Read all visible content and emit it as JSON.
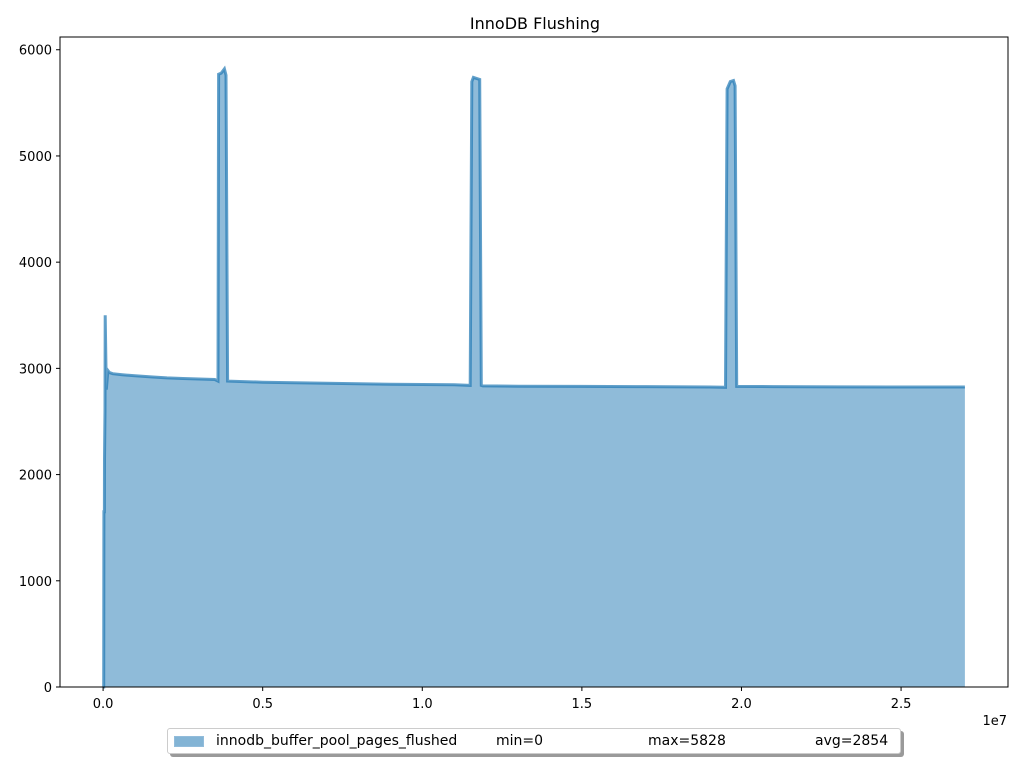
{
  "chart_data": {
    "type": "area",
    "title": "InnoDB Flushing",
    "xlabel": "",
    "ylabel": "",
    "x_offset_label": "1e7",
    "xlim": [
      -1350000,
      28350000
    ],
    "ylim": [
      0,
      6120
    ],
    "x_ticks": [
      0,
      5000000,
      10000000,
      15000000,
      20000000,
      25000000
    ],
    "x_tick_labels": [
      "0.0",
      "0.5",
      "1.0",
      "1.5",
      "2.0",
      "2.5"
    ],
    "y_ticks": [
      0,
      1000,
      2000,
      3000,
      4000,
      5000,
      6000
    ],
    "y_tick_labels": [
      "0",
      "1000",
      "2000",
      "3000",
      "4000",
      "5000",
      "6000"
    ],
    "grid": false,
    "legend_position": "bottom-center",
    "series": [
      {
        "name": "innodb_buffer_pool_pages_flushed",
        "color": "#1f77b4",
        "x": [
          0,
          20000,
          25000,
          40000,
          45000,
          60000,
          65000,
          100000,
          150000,
          200000,
          300000,
          600000,
          1000000,
          1500000,
          2000000,
          2500000,
          3000000,
          3500000,
          3600000,
          3620000,
          3700000,
          3800000,
          3850000,
          3900000,
          5000000,
          6000000,
          7000000,
          8000000,
          9000000,
          10000000,
          11000000,
          11500000,
          11550000,
          11600000,
          11700000,
          11800000,
          11850000,
          11900000,
          13000000,
          15000000,
          17000000,
          19000000,
          19500000,
          19550000,
          19650000,
          19750000,
          19800000,
          19850000,
          21000000,
          23000000,
          25000000,
          27000000
        ],
        "y": [
          0,
          0,
          1650,
          1650,
          2150,
          2600,
          3500,
          2800,
          2980,
          2960,
          2950,
          2940,
          2930,
          2920,
          2910,
          2905,
          2900,
          2895,
          2880,
          5770,
          5780,
          5820,
          5760,
          2880,
          2870,
          2865,
          2860,
          2855,
          2850,
          2848,
          2845,
          2840,
          5700,
          5740,
          5730,
          5720,
          2840,
          2835,
          2832,
          2830,
          2828,
          2825,
          2822,
          5630,
          5700,
          5710,
          5660,
          2830,
          2828,
          2826,
          2825,
          2825
        ]
      }
    ],
    "legend": {
      "min_label": "min=0",
      "max_label": "max=5828",
      "avg_label": "avg=2854"
    }
  }
}
